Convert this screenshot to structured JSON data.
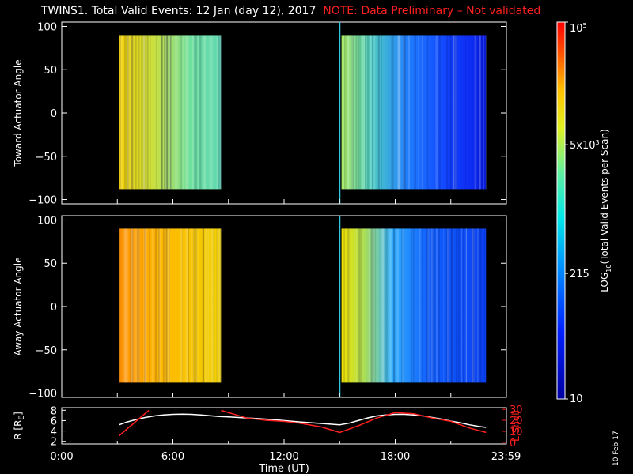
{
  "header": {
    "title_main": "TWINS1. Total Valid Events: 12 Jan (day  12), 2017",
    "title_note": "NOTE: Data Preliminary – Not validated"
  },
  "footer_stamp": "10 Feb 17",
  "colors": {
    "background": "#000000",
    "note": "#ff2020",
    "axis": "#ffffff"
  },
  "chart_data": [
    {
      "type": "heatmap",
      "name": "toward",
      "ylabel": "Toward Actuator Angle",
      "xlim": [
        0,
        24
      ],
      "ylim": [
        -105,
        105
      ],
      "yticks": [
        "100",
        "50",
        "0",
        "−50",
        "−100"
      ],
      "ytick_values": [
        100,
        50,
        0,
        -50,
        -100
      ],
      "data_blocks": [
        {
          "t_start": 3.1,
          "t_end": 8.6,
          "angle_min": -88,
          "angle_max": 90,
          "level": "yellow-green"
        },
        {
          "t_start": 15.1,
          "t_end": 22.9,
          "angle_min": -88,
          "angle_max": 90,
          "level": "green-to-blue"
        }
      ],
      "marker_time": 15.0
    },
    {
      "type": "heatmap",
      "name": "away",
      "ylabel": "Away Actuator Angle",
      "xlim": [
        0,
        24
      ],
      "ylim": [
        -105,
        105
      ],
      "yticks": [
        "100",
        "50",
        "0",
        "−50",
        "−100"
      ],
      "ytick_values": [
        100,
        50,
        0,
        -50,
        -100
      ],
      "data_blocks": [
        {
          "t_start": 3.1,
          "t_end": 8.6,
          "angle_min": -88,
          "angle_max": 90,
          "level": "orange-yellow"
        },
        {
          "t_start": 15.1,
          "t_end": 22.9,
          "angle_min": -88,
          "angle_max": 90,
          "level": "yellow-to-blue"
        }
      ],
      "marker_time": 15.0
    },
    {
      "type": "line",
      "name": "orbit",
      "xlabel": "Time (UT)",
      "ylabel_left": "R [R",
      "ylabel_left_sub": "E",
      "ylabel_left_close": "]",
      "ylabel_right": "L Shell",
      "xticks": [
        "0:00",
        "6:00",
        "12:00",
        "18:00",
        "23:59"
      ],
      "xtick_values": [
        0,
        6,
        12,
        18,
        23.98
      ],
      "yticks_left": [
        "8",
        "6",
        "4",
        "2"
      ],
      "ytick_left_values": [
        8,
        6,
        4,
        2
      ],
      "yticks_right": [
        "30",
        "20",
        "10",
        "0"
      ],
      "ytick_right_values": [
        30,
        20,
        10,
        0
      ],
      "ylim_left": [
        1.5,
        8.5
      ],
      "ylim_right": [
        -1.5,
        31.5
      ],
      "series": [
        {
          "color": "#ffffff",
          "x": [
            3.1,
            3.5,
            4,
            4.5,
            5,
            5.5,
            6,
            6.5,
            7,
            7.5,
            8,
            8.5,
            9,
            10,
            11,
            12,
            13,
            14,
            15,
            15.5,
            16,
            16.5,
            17,
            17.5,
            18,
            18.5,
            19,
            19.5,
            20,
            20.5,
            21,
            21.5,
            22,
            22.5,
            22.9
          ],
          "y": [
            5.2,
            5.7,
            6.2,
            6.6,
            6.9,
            7.1,
            7.2,
            7.25,
            7.2,
            7.1,
            6.95,
            6.8,
            6.7,
            6.5,
            6.3,
            6.0,
            5.7,
            5.45,
            5.2,
            5.5,
            6.0,
            6.5,
            6.9,
            7.1,
            7.2,
            7.2,
            7.1,
            6.9,
            6.6,
            6.3,
            5.9,
            5.6,
            5.2,
            4.9,
            4.7
          ]
        },
        {
          "color": "#ff2020",
          "x": [
            3.1,
            4.7,
            null,
            8.6,
            10,
            11,
            12,
            13,
            14,
            15,
            16,
            17,
            18,
            19,
            20,
            21,
            22,
            22.9
          ],
          "y_right": [
            6,
            29,
            null,
            29,
            22,
            20,
            19,
            17,
            14,
            9,
            15,
            22,
            27,
            26,
            22,
            19,
            13,
            9
          ]
        }
      ]
    },
    {
      "type": "colorbar",
      "name": "colorbar",
      "label": "LOG",
      "label_sub": "10",
      "label_rest": "(Total Valid Events per Scan)",
      "tick_labels": [
        {
          "base": "10",
          "exp": "5",
          "value": 100000
        },
        {
          "base": "5x10",
          "exp": "3",
          "value": 5000
        },
        {
          "base": "215",
          "exp": "",
          "value": 215
        },
        {
          "base": "10",
          "exp": "",
          "value": 10
        }
      ]
    }
  ]
}
